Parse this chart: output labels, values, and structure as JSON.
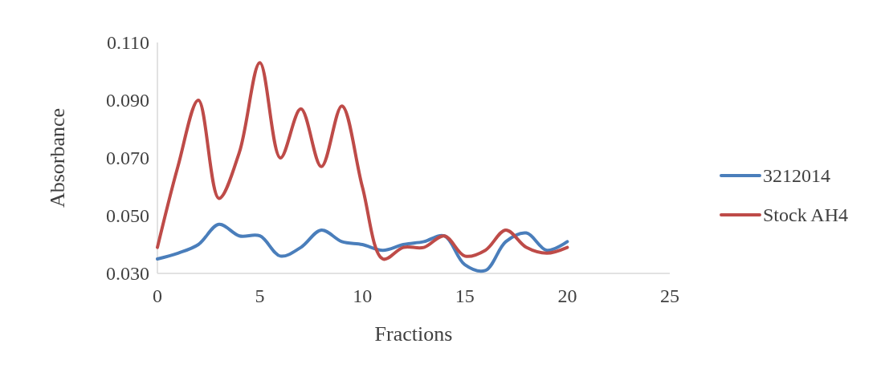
{
  "chart_data": {
    "type": "line",
    "xlabel": "Fractions",
    "ylabel": "Absorbance",
    "x": [
      0,
      1,
      2,
      3,
      4,
      5,
      6,
      7,
      8,
      9,
      10,
      11,
      12,
      13,
      14,
      15,
      16,
      17,
      18,
      19,
      20
    ],
    "xlim": [
      0,
      25
    ],
    "xticks": [
      0,
      5,
      10,
      15,
      20,
      25
    ],
    "ylim": [
      0.03,
      0.11
    ],
    "yticks": [
      {
        "value": 0.03,
        "label": "0.030"
      },
      {
        "value": 0.05,
        "label": "0.050"
      },
      {
        "value": 0.07,
        "label": "0.070"
      },
      {
        "value": 0.09,
        "label": "0.090"
      },
      {
        "value": 0.11,
        "label": "0.110"
      }
    ],
    "series": [
      {
        "name": "3212014",
        "color": "#4a7ebb",
        "values": [
          0.035,
          0.037,
          0.04,
          0.047,
          0.043,
          0.043,
          0.036,
          0.039,
          0.045,
          0.041,
          0.04,
          0.038,
          0.04,
          0.041,
          0.043,
          0.033,
          0.031,
          0.041,
          0.044,
          0.038,
          0.041
        ]
      },
      {
        "name": "Stock AH4",
        "color": "#be4b48",
        "values": [
          0.039,
          0.067,
          0.09,
          0.056,
          0.072,
          0.103,
          0.07,
          0.087,
          0.067,
          0.088,
          0.06,
          0.035,
          0.039,
          0.039,
          0.043,
          0.036,
          0.038,
          0.045,
          0.039,
          0.037,
          0.039
        ]
      }
    ],
    "legend": "right",
    "grid": false,
    "marker": "none",
    "line_style": "solid"
  }
}
